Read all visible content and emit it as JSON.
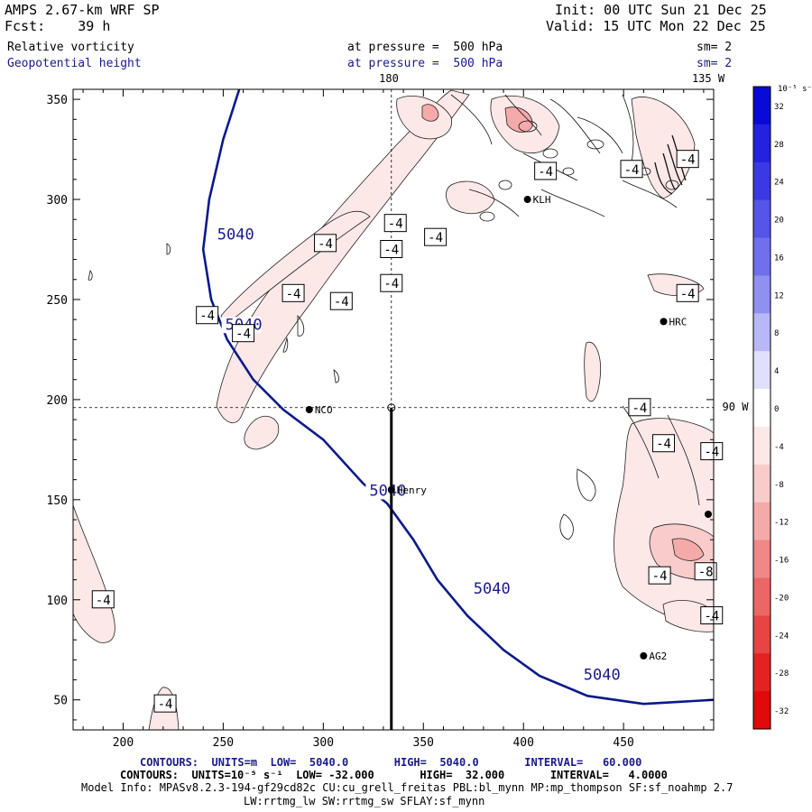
{
  "header": {
    "model": "AMPS 2.67-km WRF SP",
    "init": "Init: 00 UTC Sun 21 Dec 25",
    "fcst": "Fcst:    39 h",
    "valid": "Valid: 15 UTC Mon 22 Dec 25",
    "field1": "Relative vorticity",
    "pressure1": "at pressure =  500 hPa",
    "sm1": "sm= 2",
    "field2": "Geopotential height",
    "pressure2": "at pressure =  500 hPa",
    "sm2": "sm= 2"
  },
  "map_labels": {
    "lon_top_center": "180",
    "lon_top_right": "135 W",
    "lat_right": "90 W"
  },
  "colorbar": {
    "unit": "10⁻⁵ s⁻¹",
    "ticks": [
      "32",
      "28",
      "24",
      "20",
      "16",
      "12",
      "8",
      "4",
      "0",
      "-4",
      "-8",
      "-12",
      "-16",
      "-20",
      "-24",
      "-28",
      "-32"
    ],
    "colors": [
      "#0a0ad8",
      "#2222e0",
      "#3a3ae4",
      "#5555e8",
      "#7070ec",
      "#9090f0",
      "#b8b8f6",
      "#e0e0fb",
      "#ffffff",
      "#fde8e8",
      "#f9cccc",
      "#f5aaaa",
      "#f08888",
      "#ec6666",
      "#e84444",
      "#e42222",
      "#e00a0a"
    ]
  },
  "stations": [
    {
      "name": "NCO"
    },
    {
      "name": "Henry"
    },
    {
      "name": "HRC"
    },
    {
      "name": "AG2"
    },
    {
      "name": "KLH"
    }
  ],
  "chart_data": {
    "type": "contour",
    "xlim": [
      175,
      495
    ],
    "ylim": [
      35,
      355
    ],
    "xticks": [
      200,
      250,
      300,
      350,
      400,
      450
    ],
    "yticks": [
      50,
      100,
      150,
      200,
      250,
      300,
      350
    ],
    "height_contour": {
      "level": "5040",
      "points": [
        [
          258,
          355
        ],
        [
          250,
          330
        ],
        [
          243,
          300
        ],
        [
          240,
          275
        ],
        [
          244,
          250
        ],
        [
          252,
          230
        ],
        [
          265,
          210
        ],
        [
          280,
          195
        ],
        [
          300,
          180
        ],
        [
          320,
          158
        ],
        [
          332,
          148
        ],
        [
          345,
          130
        ],
        [
          357,
          110
        ],
        [
          372,
          92
        ],
        [
          390,
          75
        ],
        [
          408,
          62
        ],
        [
          432,
          52
        ],
        [
          460,
          48
        ],
        [
          495,
          50
        ]
      ],
      "labels": [
        {
          "text": "5040",
          "x": 247,
          "y": 280
        },
        {
          "text": "5040",
          "x": 251,
          "y": 235
        },
        {
          "text": "5040",
          "x": 323,
          "y": 152
        },
        {
          "text": "5040",
          "x": 375,
          "y": 103
        },
        {
          "text": "5040",
          "x": 430,
          "y": 60
        }
      ]
    },
    "vorticity_labels": [
      {
        "text": "-4",
        "x": 221,
        "y": 48
      },
      {
        "text": "-4",
        "x": 190,
        "y": 100
      },
      {
        "text": "-4",
        "x": 242,
        "y": 242
      },
      {
        "text": "-4",
        "x": 260,
        "y": 233
      },
      {
        "text": "-4",
        "x": 285,
        "y": 253
      },
      {
        "text": "-4",
        "x": 301,
        "y": 278
      },
      {
        "text": "-4",
        "x": 309,
        "y": 249
      },
      {
        "text": "-4",
        "x": 334,
        "y": 258
      },
      {
        "text": "-4",
        "x": 334,
        "y": 275
      },
      {
        "text": "-4",
        "x": 336,
        "y": 288
      },
      {
        "text": "-4",
        "x": 356,
        "y": 281
      },
      {
        "text": "-4",
        "x": 411,
        "y": 314
      },
      {
        "text": "-4",
        "x": 482,
        "y": 320
      },
      {
        "text": "-4",
        "x": 454,
        "y": 315
      },
      {
        "text": "-4",
        "x": 482,
        "y": 253
      },
      {
        "text": "-4",
        "x": 458,
        "y": 196
      },
      {
        "text": "-4",
        "x": 470,
        "y": 178
      },
      {
        "text": "-4",
        "x": 494,
        "y": 174
      },
      {
        "text": "-4",
        "x": 468,
        "y": 112
      },
      {
        "text": "-4",
        "x": 494,
        "y": 92
      },
      {
        "text": "-8",
        "x": 491,
        "y": 114
      }
    ],
    "station_points": [
      {
        "name": "NCO",
        "x": 293,
        "y": 195
      },
      {
        "name": "Henry",
        "x": 334,
        "y": 155
      },
      {
        "name": "HRC",
        "x": 470,
        "y": 239
      },
      {
        "name": "AG2",
        "x": 460,
        "y": 72
      },
      {
        "name": "KLH",
        "x": 402,
        "y": 300
      }
    ],
    "cross_section": {
      "x": 334,
      "y0": 35,
      "y1": 196
    },
    "lon_line_x": 334,
    "lat_line_y": 196
  },
  "footer": {
    "line1": "CONTOURS:  UNITS=m  LOW=  5040.0       HIGH=  5040.0       INTERVAL=   60.000",
    "line2": "CONTOURS:  UNITS=10⁻⁵ s⁻¹  LOW= -32.000       HIGH=  32.000       INTERVAL=   4.0000",
    "line3": "Model Info: MPASv8.2.3-194-gf29cd82c CU:cu_grell_freitas PBL:bl_mynn MP:mp_thompson SF:sf_noahmp 2.7",
    "line4": "LW:rrtmg_lw SW:rrtmg_sw SFLAY:sf_mynn"
  }
}
